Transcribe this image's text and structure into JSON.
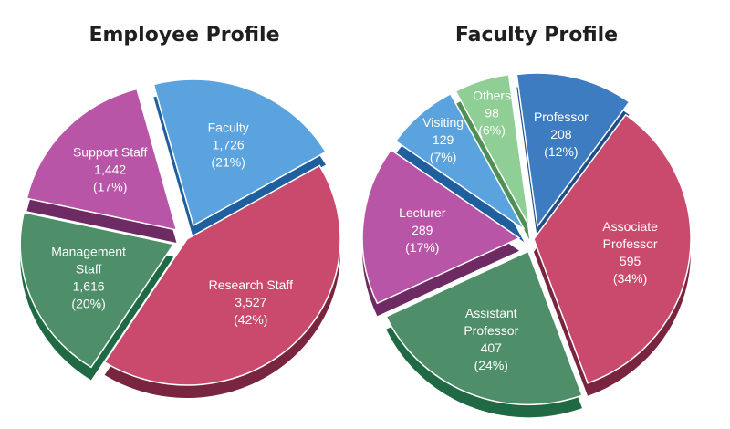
{
  "chart_data": [
    {
      "type": "pie",
      "title": "Employee Profile",
      "slices": [
        {
          "lines": [
            "Faculty"
          ],
          "value": "1,726",
          "percent": "(21%)",
          "number": 1726,
          "color": "#5aa3df",
          "side": "#1f5f9e"
        },
        {
          "lines": [
            "Research Staff"
          ],
          "value": "3,527",
          "percent": "(42%)",
          "number": 3527,
          "color": "#c94a6d",
          "side": "#7a2540"
        },
        {
          "lines": [
            "Management",
            "Staff"
          ],
          "value": "1,616",
          "percent": "(20%)",
          "number": 1616,
          "color": "#4e8f6a",
          "side": "#1f6a45"
        },
        {
          "lines": [
            "Support Staff"
          ],
          "value": "1,442",
          "percent": "(17%)",
          "number": 1442,
          "color": "#b855a7",
          "side": "#6e2a63"
        }
      ]
    },
    {
      "type": "pie",
      "title": "Faculty Profile",
      "slices": [
        {
          "lines": [
            "Others"
          ],
          "value": "98",
          "percent": "(6%)",
          "number": 98,
          "color": "#8fce94",
          "side": "#4e8f55"
        },
        {
          "lines": [
            "Professor"
          ],
          "value": "208",
          "percent": "(12%)",
          "number": 208,
          "color": "#3d7cc0",
          "side": "#1e4f86"
        },
        {
          "lines": [
            "Associate",
            "Professor"
          ],
          "value": "595",
          "percent": "(34%)",
          "number": 595,
          "color": "#c94a6d",
          "side": "#7a2540"
        },
        {
          "lines": [
            "Assistant",
            "Professor"
          ],
          "value": "407",
          "percent": "(24%)",
          "number": 407,
          "color": "#4e8f6a",
          "side": "#1f6a45"
        },
        {
          "lines": [
            "Lecturer"
          ],
          "value": "289",
          "percent": "(17%)",
          "number": 289,
          "color": "#b855a7",
          "side": "#6e2a63"
        },
        {
          "lines": [
            "Visiting"
          ],
          "value": "129",
          "percent": "(7%)",
          "number": 129,
          "color": "#5aa3df",
          "side": "#1f5f9e"
        }
      ]
    }
  ]
}
